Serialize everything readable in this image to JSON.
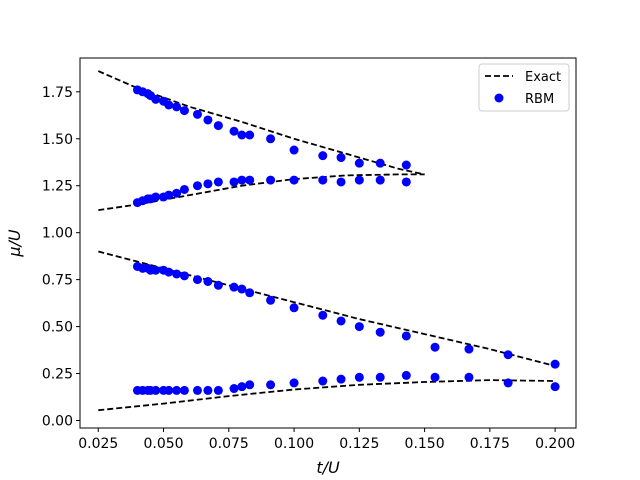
{
  "chart_data": {
    "type": "scatter",
    "title": "",
    "xlabel": "t/U",
    "ylabel": "μ/U",
    "xlim": [
      0.018,
      0.208
    ],
    "ylim": [
      -0.04,
      1.93
    ],
    "xticks": [
      0.025,
      0.05,
      0.075,
      0.1,
      0.125,
      0.15,
      0.175,
      0.2
    ],
    "xtick_labels": [
      "0.025",
      "0.050",
      "0.075",
      "0.100",
      "0.125",
      "0.150",
      "0.175",
      "0.200"
    ],
    "yticks": [
      0.0,
      0.25,
      0.5,
      0.75,
      1.0,
      1.25,
      1.5,
      1.75
    ],
    "ytick_labels": [
      "0.00",
      "0.25",
      "0.50",
      "0.75",
      "1.00",
      "1.25",
      "1.50",
      "1.75"
    ],
    "grid": false,
    "legend_position": "top-right",
    "colors": {
      "exact": "#000000",
      "rbm": "#0000ff"
    },
    "series": [
      {
        "name": "Exact",
        "style": "dashed-line",
        "segments": [
          {
            "x": [
              0.025,
              0.04,
              0.06,
              0.08,
              0.1,
              0.12,
              0.14,
              0.15
            ],
            "y": [
              1.86,
              1.77,
              1.67,
              1.59,
              1.5,
              1.42,
              1.34,
              1.31
            ]
          },
          {
            "x": [
              0.025,
              0.04,
              0.06,
              0.08,
              0.1,
              0.12,
              0.14,
              0.15
            ],
            "y": [
              1.12,
              1.15,
              1.2,
              1.25,
              1.285,
              1.305,
              1.31,
              1.31
            ]
          },
          {
            "x": [
              0.025,
              0.05,
              0.075,
              0.1,
              0.125,
              0.15,
              0.175,
              0.2
            ],
            "y": [
              0.9,
              0.81,
              0.72,
              0.63,
              0.54,
              0.46,
              0.38,
              0.29
            ]
          },
          {
            "x": [
              0.025,
              0.05,
              0.075,
              0.1,
              0.125,
              0.15,
              0.175,
              0.2
            ],
            "y": [
              0.055,
              0.09,
              0.13,
              0.165,
              0.19,
              0.205,
              0.215,
              0.21
            ]
          }
        ]
      },
      {
        "name": "RBM",
        "style": "markers",
        "points": [
          [
            0.04,
            1.76
          ],
          [
            0.042,
            1.75
          ],
          [
            0.044,
            1.74
          ],
          [
            0.045,
            1.73
          ],
          [
            0.047,
            1.71
          ],
          [
            0.05,
            1.7
          ],
          [
            0.052,
            1.68
          ],
          [
            0.055,
            1.67
          ],
          [
            0.058,
            1.65
          ],
          [
            0.063,
            1.63
          ],
          [
            0.067,
            1.6
          ],
          [
            0.071,
            1.57
          ],
          [
            0.077,
            1.54
          ],
          [
            0.08,
            1.52
          ],
          [
            0.083,
            1.52
          ],
          [
            0.091,
            1.5
          ],
          [
            0.1,
            1.44
          ],
          [
            0.111,
            1.41
          ],
          [
            0.118,
            1.4
          ],
          [
            0.125,
            1.37
          ],
          [
            0.133,
            1.37
          ],
          [
            0.143,
            1.36
          ],
          [
            0.04,
            1.16
          ],
          [
            0.042,
            1.17
          ],
          [
            0.044,
            1.18
          ],
          [
            0.045,
            1.18
          ],
          [
            0.047,
            1.19
          ],
          [
            0.05,
            1.19
          ],
          [
            0.052,
            1.2
          ],
          [
            0.055,
            1.21
          ],
          [
            0.058,
            1.23
          ],
          [
            0.063,
            1.25
          ],
          [
            0.067,
            1.26
          ],
          [
            0.071,
            1.27
          ],
          [
            0.077,
            1.27
          ],
          [
            0.08,
            1.28
          ],
          [
            0.083,
            1.28
          ],
          [
            0.091,
            1.28
          ],
          [
            0.1,
            1.28
          ],
          [
            0.111,
            1.28
          ],
          [
            0.118,
            1.27
          ],
          [
            0.125,
            1.28
          ],
          [
            0.133,
            1.28
          ],
          [
            0.143,
            1.27
          ],
          [
            0.04,
            0.82
          ],
          [
            0.042,
            0.81
          ],
          [
            0.044,
            0.81
          ],
          [
            0.045,
            0.8
          ],
          [
            0.047,
            0.8
          ],
          [
            0.05,
            0.8
          ],
          [
            0.052,
            0.79
          ],
          [
            0.055,
            0.78
          ],
          [
            0.058,
            0.77
          ],
          [
            0.063,
            0.75
          ],
          [
            0.067,
            0.74
          ],
          [
            0.071,
            0.72
          ],
          [
            0.077,
            0.71
          ],
          [
            0.08,
            0.7
          ],
          [
            0.083,
            0.68
          ],
          [
            0.091,
            0.64
          ],
          [
            0.1,
            0.6
          ],
          [
            0.111,
            0.56
          ],
          [
            0.118,
            0.53
          ],
          [
            0.125,
            0.5
          ],
          [
            0.133,
            0.47
          ],
          [
            0.143,
            0.45
          ],
          [
            0.154,
            0.39
          ],
          [
            0.167,
            0.38
          ],
          [
            0.182,
            0.35
          ],
          [
            0.2,
            0.3
          ],
          [
            0.04,
            0.16
          ],
          [
            0.042,
            0.16
          ],
          [
            0.044,
            0.16
          ],
          [
            0.045,
            0.16
          ],
          [
            0.047,
            0.16
          ],
          [
            0.05,
            0.16
          ],
          [
            0.052,
            0.16
          ],
          [
            0.055,
            0.16
          ],
          [
            0.058,
            0.16
          ],
          [
            0.063,
            0.16
          ],
          [
            0.067,
            0.16
          ],
          [
            0.071,
            0.16
          ],
          [
            0.077,
            0.17
          ],
          [
            0.08,
            0.18
          ],
          [
            0.083,
            0.19
          ],
          [
            0.091,
            0.19
          ],
          [
            0.1,
            0.2
          ],
          [
            0.111,
            0.21
          ],
          [
            0.118,
            0.22
          ],
          [
            0.125,
            0.23
          ],
          [
            0.133,
            0.23
          ],
          [
            0.143,
            0.24
          ],
          [
            0.154,
            0.23
          ],
          [
            0.167,
            0.23
          ],
          [
            0.182,
            0.2
          ],
          [
            0.2,
            0.18
          ]
        ]
      }
    ]
  }
}
